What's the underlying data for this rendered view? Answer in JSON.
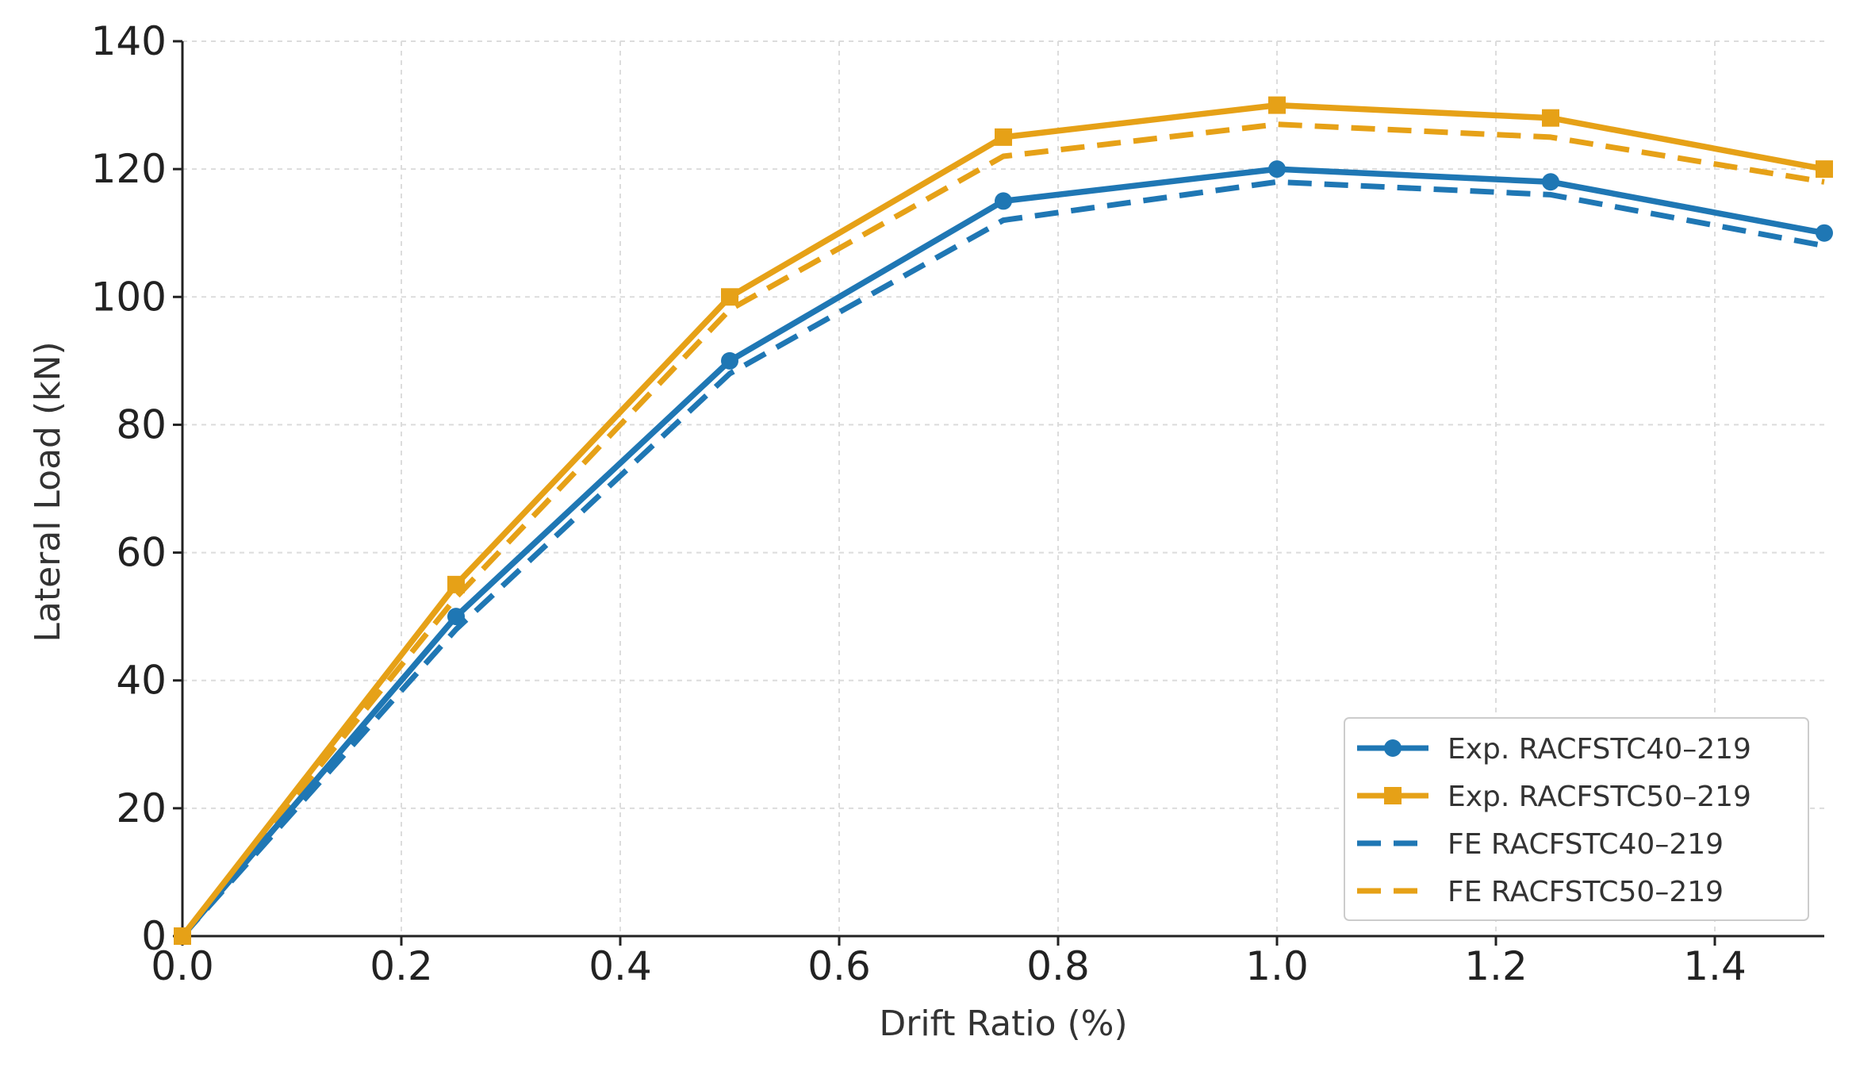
{
  "chart_data": {
    "type": "line",
    "title": "",
    "xlabel": "Drift Ratio (%)",
    "ylabel": "Lateral Load (kN)",
    "xlim": [
      0.0,
      1.5
    ],
    "ylim": [
      0,
      140
    ],
    "xticks": [
      0.0,
      0.2,
      0.4,
      0.6,
      0.8,
      1.0,
      1.2,
      1.4
    ],
    "xtick_labels": [
      "0.0",
      "0.2",
      "0.4",
      "0.6",
      "0.8",
      "1.0",
      "1.2",
      "1.4"
    ],
    "yticks": [
      0,
      20,
      40,
      60,
      80,
      100,
      120,
      140
    ],
    "ytick_labels": [
      "0",
      "20",
      "40",
      "60",
      "80",
      "100",
      "120",
      "140"
    ],
    "grid": true,
    "legend_position": "bottom-right",
    "series": [
      {
        "name": "Exp. RACFSTC40–219",
        "color": "#1f77b4",
        "style": "solid",
        "marker": "circle",
        "x": [
          0.0,
          0.25,
          0.5,
          0.75,
          1.0,
          1.25,
          1.5
        ],
        "y": [
          0,
          50,
          90,
          115,
          120,
          118,
          110
        ]
      },
      {
        "name": "Exp. RACFSTC50–219",
        "color": "#e6a117",
        "style": "solid",
        "marker": "square",
        "x": [
          0.0,
          0.25,
          0.5,
          0.75,
          1.0,
          1.25,
          1.5
        ],
        "y": [
          0,
          55,
          100,
          125,
          130,
          128,
          120
        ]
      },
      {
        "name": "FE RACFSTC40–219",
        "color": "#1f77b4",
        "style": "dashed",
        "marker": "none",
        "x": [
          0.0,
          0.25,
          0.5,
          0.75,
          1.0,
          1.25,
          1.5
        ],
        "y": [
          0,
          48,
          88,
          112,
          118,
          116,
          108
        ]
      },
      {
        "name": "FE RACFSTC50–219",
        "color": "#e6a117",
        "style": "dashed",
        "marker": "none",
        "x": [
          0.0,
          0.25,
          0.5,
          0.75,
          1.0,
          1.25,
          1.5
        ],
        "y": [
          0,
          53,
          98,
          122,
          127,
          125,
          118
        ]
      }
    ]
  }
}
